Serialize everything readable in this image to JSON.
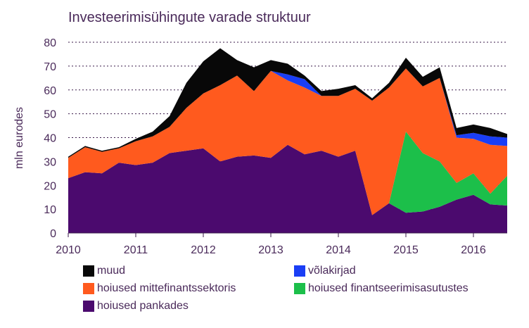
{
  "chart_data": {
    "type": "area",
    "stacked": true,
    "title": "Investeerimisühingute varade struktuur",
    "xlabel": "",
    "ylabel": "mln eurodes",
    "xlim": [
      2010.0,
      2016.5
    ],
    "ylim": [
      0,
      80
    ],
    "yticks": [
      0,
      10,
      20,
      30,
      40,
      50,
      60,
      70,
      80
    ],
    "xticks": [
      2010,
      2011,
      2012,
      2013,
      2014,
      2015,
      2016
    ],
    "grid": true,
    "x": [
      2010.0,
      2010.25,
      2010.5,
      2010.75,
      2011.0,
      2011.25,
      2011.5,
      2011.75,
      2012.0,
      2012.25,
      2012.5,
      2012.75,
      2013.0,
      2013.25,
      2013.5,
      2013.75,
      2014.0,
      2014.25,
      2014.5,
      2014.75,
      2015.0,
      2015.25,
      2015.5,
      2015.75,
      2016.0,
      2016.25,
      2016.5
    ],
    "series": [
      {
        "name": "hoiused pankades",
        "color": "#4b0a6e",
        "values": [
          23,
          25.5,
          25,
          29.5,
          28.5,
          29.5,
          33.5,
          34.5,
          35.5,
          30,
          32,
          32.5,
          31.5,
          37,
          33,
          34.5,
          32,
          34.5,
          7.5,
          12.5,
          8.5,
          9,
          11,
          14,
          16,
          12,
          11.5
        ]
      },
      {
        "name": "hoiused finantseerimisasutustes",
        "color": "#1cbf4a",
        "values": [
          0,
          0,
          0,
          0,
          0,
          0,
          0,
          0,
          0,
          0,
          0,
          0,
          0,
          0,
          0,
          0,
          0,
          0,
          0,
          0,
          34,
          24.5,
          19,
          7,
          9,
          4.5,
          12.5
        ]
      },
      {
        "name": "hoiused mittefinantssektoris",
        "color": "#ff5a1e",
        "values": [
          8.5,
          10.5,
          9,
          6,
          10,
          11,
          11,
          18,
          23,
          32,
          34,
          27,
          36.5,
          27,
          28,
          23,
          25.5,
          26,
          48,
          48.5,
          26.5,
          28,
          35,
          19,
          14.5,
          20.5,
          12.5
        ]
      },
      {
        "name": "võlakirjad",
        "color": "#1a3ef5",
        "values": [
          0,
          0,
          0,
          0,
          0,
          0,
          0,
          0,
          0,
          0,
          0,
          0,
          0,
          2.5,
          3.5,
          0,
          0,
          0,
          0,
          0,
          0,
          0,
          0,
          1,
          2.5,
          3.5,
          3.5
        ]
      },
      {
        "name": "muud",
        "color": "#080808",
        "values": [
          0.5,
          0.5,
          0.5,
          0.5,
          1,
          2,
          4.5,
          10.5,
          13.5,
          15.5,
          6.5,
          10,
          4.5,
          4.5,
          1.5,
          2,
          3,
          1.5,
          1,
          2,
          4.5,
          4,
          4.5,
          3,
          3.5,
          3.5,
          1.5
        ]
      }
    ],
    "legend": [
      {
        "key": "muud",
        "label": "muud",
        "color": "#080808"
      },
      {
        "key": "volakirjad",
        "label": "võlakirjad",
        "color": "#1a3ef5"
      },
      {
        "key": "mittefinants",
        "label": "hoiused mittefinantssektoris",
        "color": "#ff5a1e"
      },
      {
        "key": "finants",
        "label": "hoiused finantseerimisasutustes",
        "color": "#1cbf4a"
      },
      {
        "key": "pankades",
        "label": "hoiused pankades",
        "color": "#4b0a6e"
      }
    ]
  }
}
